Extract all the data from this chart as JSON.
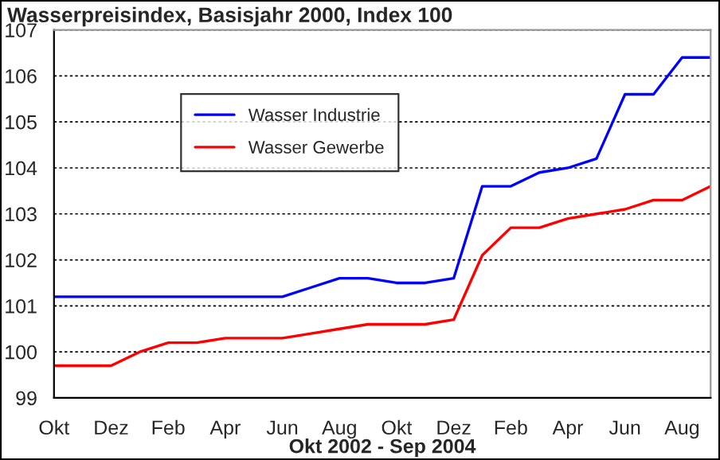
{
  "chart_data": {
    "type": "line",
    "title": "Wasserpreisindex, Basisjahr 2000, Index 100",
    "xlabel": "Okt 2002 - Sep 2004",
    "categories": [
      "Okt",
      null,
      "Dez",
      null,
      "Feb",
      null,
      "Apr",
      null,
      "Jun",
      null,
      "Aug",
      null,
      "Okt",
      null,
      "Dez",
      null,
      "Feb",
      null,
      "Apr",
      null,
      "Jun",
      null,
      "Aug",
      null
    ],
    "series": [
      {
        "name": "Wasser Industrie",
        "color": "#0000ff",
        "values": [
          101.2,
          101.2,
          101.2,
          101.2,
          101.2,
          101.2,
          101.2,
          101.2,
          101.2,
          101.4,
          101.6,
          101.6,
          101.5,
          101.5,
          101.6,
          103.6,
          103.6,
          103.9,
          104.0,
          104.2,
          105.6,
          105.6,
          106.4,
          106.4
        ]
      },
      {
        "name": "Wasser Gewerbe",
        "color": "#ff0000",
        "values": [
          99.7,
          99.7,
          99.7,
          100.0,
          100.2,
          100.2,
          100.3,
          100.3,
          100.3,
          100.4,
          100.5,
          100.6,
          100.6,
          100.6,
          100.7,
          102.1,
          102.7,
          102.7,
          102.9,
          103.0,
          103.1,
          103.3,
          103.3,
          103.6
        ]
      }
    ],
    "ylim": [
      99,
      107
    ],
    "yticks": [
      99,
      100,
      101,
      102,
      103,
      104,
      105,
      106,
      107
    ],
    "grid": "y",
    "legend": "top left",
    "marker": "none",
    "line_style": "solid"
  }
}
